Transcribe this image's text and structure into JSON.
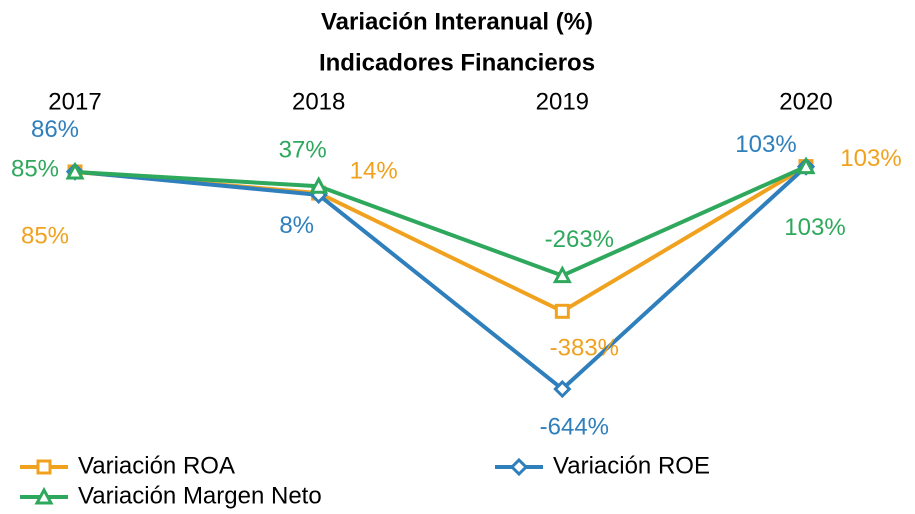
{
  "chart_data": {
    "type": "line",
    "title": "Variación Interanual (%)",
    "subtitle": "Indicadores Financieros",
    "categories": [
      "2017",
      "2018",
      "2019",
      "2020"
    ],
    "ylim": [
      -700,
      150
    ],
    "series": [
      {
        "name": "Variación ROA",
        "color": "#f0a21f",
        "marker": "square",
        "values": [
          85,
          14,
          -383,
          103
        ],
        "value_labels": [
          "85%",
          "14%",
          "-383%",
          "103%"
        ]
      },
      {
        "name": "Variación ROE",
        "color": "#2f7fbc",
        "marker": "diamond",
        "values": [
          86,
          8,
          -644,
          103
        ],
        "value_labels": [
          "86%",
          "8%",
          "-644%",
          "103%"
        ]
      },
      {
        "name": "Variación Margen Neto",
        "color": "#2ea85c",
        "marker": "triangle",
        "values": [
          85,
          37,
          -263,
          103
        ],
        "value_labels": [
          "85%",
          "37%",
          "-263%",
          "103%"
        ]
      }
    ]
  }
}
